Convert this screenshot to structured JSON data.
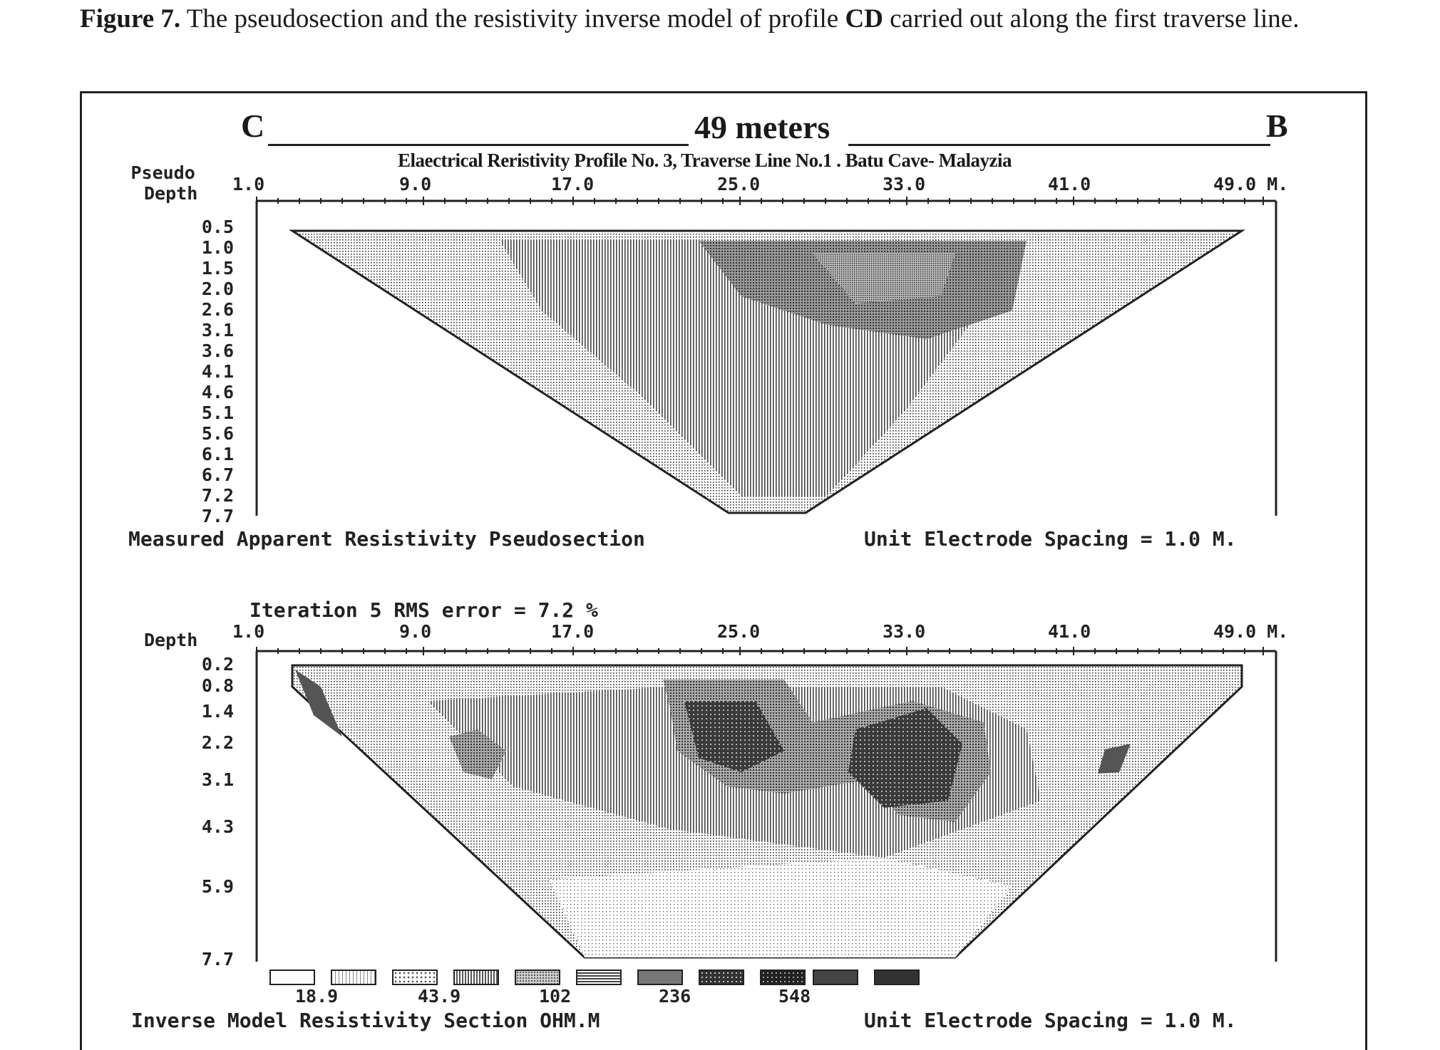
{
  "caption": {
    "fig_label": "Figure 7.",
    "text_a": " The pseudosection and the resistivity inverse model of profile ",
    "profile": "CD",
    "text_b": " carried out along the first traverse line."
  },
  "header": {
    "left_end": "C",
    "right_end": "B",
    "length": "49 meters",
    "profile_title": "Elaectrical Reristivity Profile No. 3, Traverse Line No.1 . Batu Cave- Malayzia"
  },
  "pseudosection": {
    "depth_axis_title_1": "Pseudo",
    "depth_axis_title_2": "Depth",
    "x_ticks": [
      "1.0",
      "9.0",
      "17.0",
      "25.0",
      "33.0",
      "41.0",
      "49.0 M."
    ],
    "depth_ticks": [
      "0.5",
      "1.0",
      "1.5",
      "2.0",
      "2.6",
      "3.1",
      "3.6",
      "4.1",
      "4.6",
      "5.1",
      "5.6",
      "6.1",
      "6.7",
      "7.2",
      "7.7"
    ],
    "footer_left": "Measured Apparent Resistivity Pseudosection",
    "footer_right": "Unit Electrode Spacing = 1.0 M."
  },
  "inverse_model": {
    "iteration_text": "Iteration 5 RMS error = 7.2 %",
    "depth_axis_title": "Depth",
    "x_ticks": [
      "1.0",
      "9.0",
      "17.0",
      "25.0",
      "33.0",
      "41.0",
      "49.0 M."
    ],
    "depth_ticks": [
      "0.2",
      "0.8",
      "1.4",
      "2.2",
      "3.1",
      "4.3",
      "5.9",
      "7.7"
    ],
    "legend_values": [
      "18.9",
      "43.9",
      "102",
      "236",
      "548"
    ],
    "footer_left": "Inverse Model Resistivity Section OHM.M",
    "footer_right": "Unit Electrode Spacing = 1.0 M."
  },
  "colors": {
    "ink": "#222222",
    "paper": "#ffffff"
  }
}
